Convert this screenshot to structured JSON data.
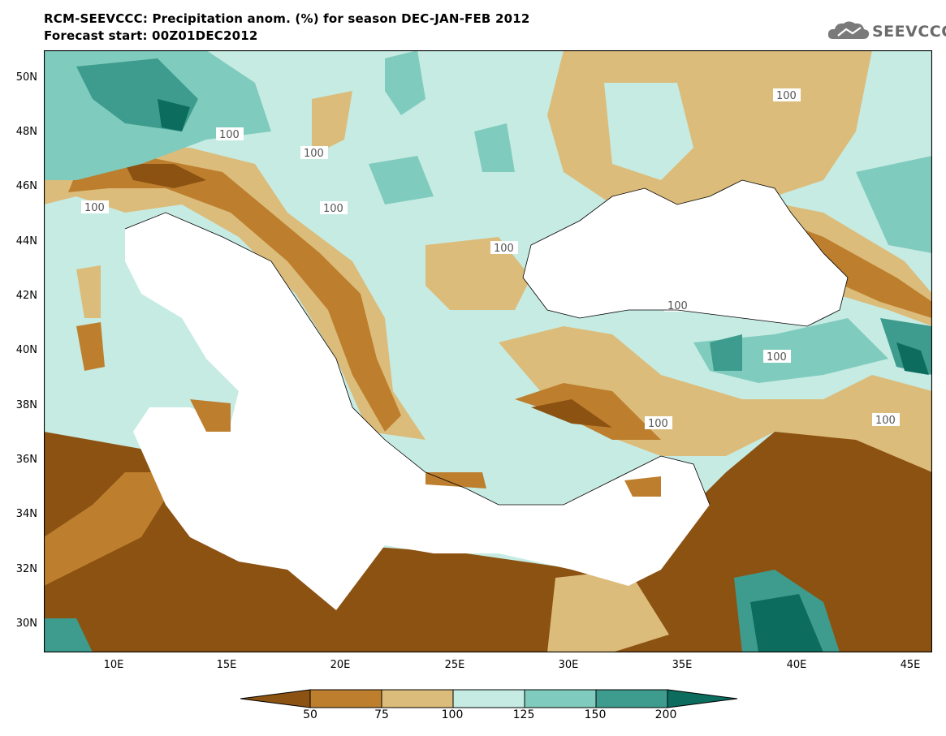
{
  "header": {
    "title_line1": "RCM-SEEVCCC: Precipitation anom. (%) for season DEC-JAN-FEB 2012",
    "title_line2": "Forecast start: 00Z01DEC2012",
    "logo_text": "SEEVCCC"
  },
  "map": {
    "region": "Mediterranean / Black Sea",
    "lat_ticks": [
      "50N",
      "48N",
      "46N",
      "44N",
      "42N",
      "40N",
      "38N",
      "36N",
      "34N",
      "32N",
      "30N"
    ],
    "lon_ticks": [
      "10E",
      "15E",
      "20E",
      "25E",
      "30E",
      "35E",
      "40E",
      "45E"
    ],
    "contour_label": "100"
  },
  "legend": {
    "labels": [
      "50",
      "75",
      "100",
      "125",
      "150",
      "200"
    ],
    "colors": [
      "#8c5212",
      "#bd7f2e",
      "#dcbc7a",
      "#c6ebe3",
      "#7fcbbd",
      "#3d9c8e",
      "#0c6d5f"
    ]
  }
}
